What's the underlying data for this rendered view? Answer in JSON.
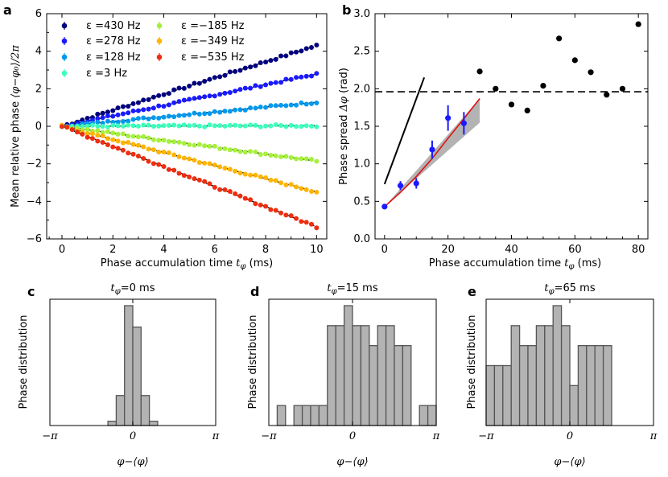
{
  "chart_data": [
    {
      "panel": "a",
      "type": "scatter",
      "xlabel": "Phase accumulation time t_φ (ms)",
      "ylabel": "Mean relative phase ⟨φ−φ0⟩/2π",
      "xlim": [
        -0.6,
        10.4
      ],
      "ylim": [
        -6,
        6
      ],
      "xticks": [
        0,
        2,
        4,
        6,
        8,
        10
      ],
      "yticks": [
        -6,
        -4,
        -2,
        0,
        2,
        4,
        6
      ],
      "series": [
        {
          "name": "ε=430 Hz",
          "label": "ε =430 Hz",
          "color": "#00007f",
          "slope": 0.43
        },
        {
          "name": "ε=278 Hz",
          "label": "ε =278 Hz",
          "color": "#1a1aff",
          "slope": 0.278
        },
        {
          "name": "ε=128 Hz",
          "label": "ε =128 Hz",
          "color": "#0099ee",
          "slope": 0.128
        },
        {
          "name": "ε=3 Hz",
          "label": "ε =3 Hz",
          "color": "#3cffbb",
          "slope": 0.003
        },
        {
          "name": "ε=−185 Hz",
          "label": "ε =−185 Hz",
          "color": "#a6f03c",
          "slope": -0.185
        },
        {
          "name": "ε=−349 Hz",
          "label": "ε =−349 Hz",
          "color": "#ffb400",
          "slope": -0.349
        },
        {
          "name": "ε=−535 Hz",
          "label": "ε =−535 Hz",
          "color": "#ee2e10",
          "slope": -0.535
        }
      ]
    },
    {
      "panel": "b",
      "type": "scatter",
      "xlabel": "Phase accumulation time t_φ (ms)",
      "ylabel": "Phase spread Δφ (rad)",
      "xlim": [
        -3,
        83
      ],
      "ylim": [
        0,
        3
      ],
      "xticks": [
        0,
        20,
        40,
        60,
        80
      ],
      "yticks": [
        "0.0",
        "0.5",
        "1.0",
        "1.5",
        "2.0",
        "2.5",
        "3.0"
      ],
      "blue_points": [
        {
          "x": 0,
          "y": 0.43,
          "err": 0.03
        },
        {
          "x": 5,
          "y": 0.71,
          "err": 0.06
        },
        {
          "x": 10,
          "y": 0.74,
          "err": 0.07
        },
        {
          "x": 15,
          "y": 1.19,
          "err": 0.12
        },
        {
          "x": 20,
          "y": 1.61,
          "err": 0.17
        },
        {
          "x": 25,
          "y": 1.54,
          "err": 0.15
        }
      ],
      "black_points": [
        {
          "x": 30,
          "y": 2.23
        },
        {
          "x": 35,
          "y": 2.0
        },
        {
          "x": 40,
          "y": 1.79
        },
        {
          "x": 45,
          "y": 1.71
        },
        {
          "x": 50,
          "y": 2.04
        },
        {
          "x": 55,
          "y": 2.67
        },
        {
          "x": 60,
          "y": 2.38
        },
        {
          "x": 65,
          "y": 2.22
        },
        {
          "x": 70,
          "y": 1.92
        },
        {
          "x": 75,
          "y": 2.0
        },
        {
          "x": 80,
          "y": 2.86
        }
      ],
      "dashed_level": 1.96,
      "black_line": [
        [
          0,
          0.73
        ],
        [
          12.5,
          2.15
        ]
      ],
      "red_line": [
        [
          0,
          0.43
        ],
        [
          5,
          0.62
        ],
        [
          10,
          0.83
        ],
        [
          15,
          1.07
        ],
        [
          20,
          1.34
        ],
        [
          25,
          1.6
        ],
        [
          30,
          1.87
        ]
      ],
      "gray_band": {
        "upper": [
          [
            0,
            0.43
          ],
          [
            30,
            1.87
          ]
        ],
        "lower": [
          [
            0,
            0.43
          ],
          [
            30,
            1.55
          ]
        ]
      }
    },
    {
      "panel": "c",
      "type": "bar",
      "title": "t_φ = 0 ms",
      "xlabel": "φ−⟨φ⟩",
      "ylabel": "Phase distribution",
      "xticks": [
        "−π",
        "0",
        "π"
      ],
      "bin_edges_frac": [
        -0.3,
        -0.2,
        -0.1,
        0.0,
        0.1,
        0.2,
        0.3
      ],
      "values": [
        1,
        7,
        28,
        23,
        7,
        1
      ]
    },
    {
      "panel": "d",
      "type": "bar",
      "title": "t_φ = 15 ms",
      "xlabel": "φ−⟨φ⟩",
      "ylabel": "Phase distribution",
      "xticks": [
        "−π",
        "0",
        "π"
      ],
      "bin_edges_frac": [
        -0.9,
        -0.8,
        -0.7,
        -0.6,
        -0.5,
        -0.4,
        -0.3,
        -0.2,
        -0.1,
        0.0,
        0.1,
        0.2,
        0.3,
        0.4,
        0.5,
        0.6,
        0.7,
        0.8,
        0.9,
        1.0
      ],
      "values": [
        1,
        0,
        1,
        1,
        1,
        1,
        5,
        5,
        6,
        5,
        5,
        4,
        5,
        5,
        4,
        4,
        0,
        1,
        1
      ]
    },
    {
      "panel": "e",
      "type": "bar",
      "title": "t_φ = 65 ms",
      "xlabel": "φ−⟨φ⟩",
      "ylabel": "Phase distribution",
      "xticks": [
        "−π",
        "0",
        "π"
      ],
      "bin_edges_frac": [
        -1.0,
        -0.9,
        -0.8,
        -0.7,
        -0.6,
        -0.5,
        -0.4,
        -0.3,
        -0.2,
        -0.1,
        0.0,
        0.1,
        0.2,
        0.3,
        0.4,
        0.5,
        0.6,
        0.7,
        0.8,
        0.9,
        1.0
      ],
      "values": [
        3,
        3,
        3,
        5,
        4,
        4,
        5,
        5,
        6,
        5,
        2,
        4,
        4,
        4,
        4,
        0,
        0,
        0,
        0,
        0
      ]
    }
  ],
  "panel_labels": {
    "a": "a",
    "b": "b",
    "c": "c",
    "d": "d",
    "e": "e"
  },
  "text": {
    "a_xlabel": "Phase accumulation time",
    "a_xlabel_var": "t",
    "a_xlabel_sub": "φ",
    "a_xlabel_unit": "(ms)",
    "a_ylabel_pre": "Mean relative phase",
    "a_ylabel_math": "⟨φ−φ₀⟩/2π",
    "b_xlabel": "Phase accumulation time",
    "b_xlabel_var": "t",
    "b_xlabel_sub": "φ",
    "b_xlabel_unit": "(ms)",
    "b_ylabel_pre": "Phase spread",
    "b_ylabel_math": "Δφ",
    "b_ylabel_unit": "(rad)",
    "c_title_var": "t",
    "c_title_sub": "φ",
    "c_title_rest": "=0 ms",
    "d_title_var": "t",
    "d_title_sub": "φ",
    "d_title_rest": "=15 ms",
    "e_title_var": "t",
    "e_title_sub": "φ",
    "e_title_rest": "=65 ms",
    "hist_xlabel": "φ−⟨φ⟩",
    "hist_ylabel": "Phase distribution",
    "tick_mpi": "−π",
    "tick_zero": "0",
    "tick_pi": "π"
  }
}
